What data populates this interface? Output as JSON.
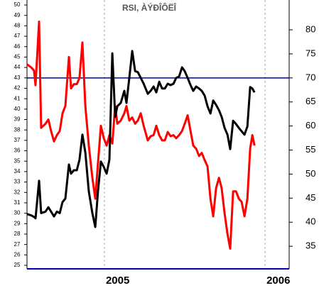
{
  "chart_data": {
    "type": "line",
    "title": "RSI, ÀÝÐÎÔËÎ",
    "x": [
      2004.518,
      2004.545,
      2004.562,
      2004.571,
      2004.593,
      2004.606,
      2004.633,
      2004.651,
      2004.668,
      2004.686,
      2004.704,
      2004.722,
      2004.739,
      2004.757,
      2004.779,
      2004.792,
      2004.81,
      2004.828,
      2004.845,
      2004.863,
      2004.881,
      2004.903,
      2004.925,
      2004.943,
      2004.96,
      2004.978,
      2004.996,
      2005.014,
      2005.031,
      2005.049,
      2005.067,
      2005.08,
      2005.102,
      2005.124,
      2005.137,
      2005.155,
      2005.173,
      2005.191,
      2005.208,
      2005.226,
      2005.244,
      2005.27,
      2005.288,
      2005.306,
      2005.323,
      2005.341,
      2005.359,
      2005.376,
      2005.394,
      2005.412,
      2005.43,
      2005.447,
      2005.465,
      2005.483,
      2005.5,
      2005.518,
      2005.536,
      2005.553,
      2005.571,
      2005.589,
      2005.606,
      2005.624,
      2005.642,
      2005.66,
      2005.677,
      2005.695,
      2005.713,
      2005.73,
      2005.748,
      2005.766,
      2005.783,
      2005.801,
      2005.819,
      2005.837,
      2005.854,
      2005.872,
      2005.89,
      2005.907,
      2005.921,
      2005.934
    ],
    "series": [
      {
        "color": "#ff0000",
        "axis": "y",
        "values": [
          44.3,
          44.0,
          43.7,
          42.3,
          48.4,
          38.2,
          38.6,
          39.0,
          37.9,
          36.9,
          37.5,
          37.9,
          39.6,
          40.3,
          45.0,
          42.0,
          42.4,
          42.4,
          43.0,
          46.4,
          40.3,
          36.5,
          33.4,
          31.4,
          34.8,
          38.4,
          37.2,
          36.5,
          37.5,
          36.7,
          40.3,
          38.6,
          38.9,
          39.6,
          40.3,
          38.9,
          39.2,
          38.6,
          38.9,
          39.6,
          38.4,
          37.0,
          37.4,
          37.5,
          38.4,
          37.5,
          37.0,
          37.0,
          37.8,
          37.4,
          37.5,
          37.2,
          37.5,
          37.9,
          38.6,
          39.4,
          37.9,
          36.5,
          36.2,
          35.5,
          35.8,
          35.1,
          34.5,
          31.4,
          29.7,
          32.4,
          33.4,
          32.4,
          30.0,
          28.0,
          26.6,
          32.1,
          32.1,
          31.4,
          31.1,
          29.7,
          31.4,
          36.2,
          37.5,
          36.5
        ]
      },
      {
        "color": "#000000",
        "axis": "y2",
        "values": [
          41.7,
          41.4,
          41.1,
          40.8,
          48.6,
          41.9,
          42.2,
          43.1,
          42.2,
          41.2,
          42.2,
          41.9,
          44.2,
          44.9,
          52.0,
          50.1,
          50.8,
          50.8,
          53.0,
          58.2,
          54.5,
          46.4,
          41.9,
          39.0,
          46.4,
          52.6,
          51.5,
          50.1,
          53.0,
          75.1,
          61.9,
          64.1,
          64.8,
          67.3,
          64.8,
          70.0,
          75.6,
          71.4,
          71.2,
          70.0,
          68.8,
          66.7,
          67.3,
          68.2,
          67.0,
          69.2,
          67.8,
          67.8,
          68.8,
          68.5,
          68.8,
          70.0,
          70.3,
          72.2,
          71.4,
          70.0,
          68.5,
          67.3,
          68.2,
          67.8,
          67.3,
          66.3,
          64.1,
          62.6,
          65.3,
          64.4,
          63.3,
          61.9,
          59.6,
          58.2,
          55.2,
          61.1,
          60.4,
          59.6,
          58.9,
          58.2,
          59.9,
          68.1,
          67.8,
          67.0
        ]
      }
    ],
    "xlim": [
      2004.518,
      2006.15
    ],
    "xticks": [
      2005,
      2006
    ],
    "ylim": [
      24.66,
      50.48
    ],
    "yticks": [
      25,
      26,
      27,
      28,
      29,
      30,
      31,
      32,
      33,
      34,
      35,
      36,
      37,
      38,
      39,
      40,
      41,
      42,
      43,
      44,
      45,
      46,
      47,
      48,
      49,
      50
    ],
    "y2lim": [
      30.3,
      86.2
    ],
    "y2ticks": [
      35,
      40,
      45,
      50,
      55,
      60,
      65,
      70,
      75,
      80
    ],
    "reference_line": {
      "value": 70,
      "axis": "y2",
      "color": "#0000aa"
    },
    "axis_color": "#0000aa"
  }
}
